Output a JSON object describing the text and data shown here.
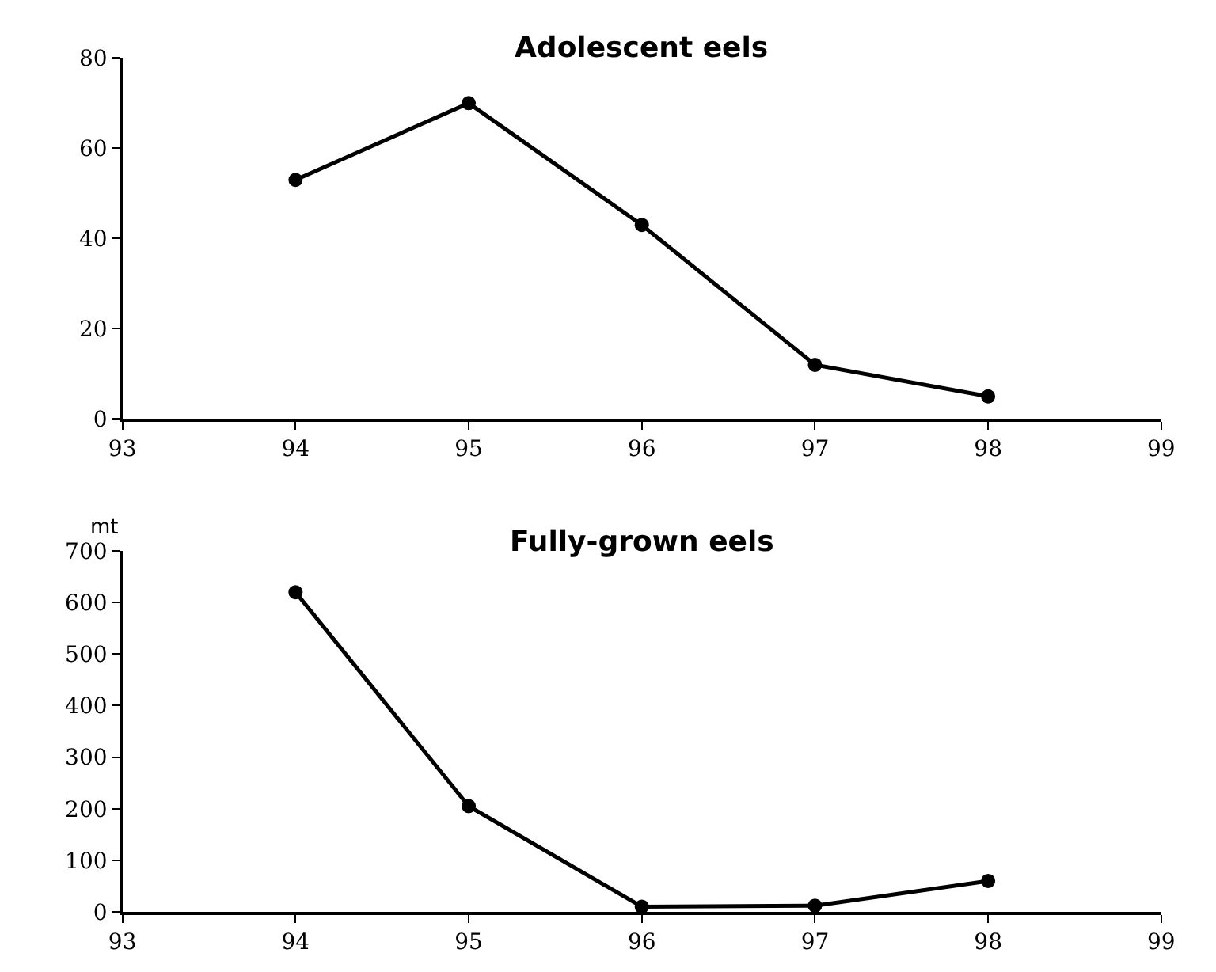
{
  "chart_data": [
    {
      "type": "line",
      "title": "Adolescent eels",
      "x": [
        94,
        95,
        96,
        97,
        98
      ],
      "series": [
        {
          "color": "#000000",
          "values": [
            53,
            70,
            43,
            12,
            5
          ]
        }
      ],
      "xlim": [
        93,
        99
      ],
      "xticks": [
        93,
        94,
        95,
        96,
        97,
        98,
        99
      ],
      "ylim": [
        0,
        80
      ],
      "yticks": [
        0,
        20,
        40,
        60,
        80
      ],
      "marker": "circle",
      "line_style": "solid"
    },
    {
      "type": "line",
      "title": "Fully-grown eels",
      "ylabel": "mt",
      "x": [
        94,
        95,
        96,
        97,
        98
      ],
      "series": [
        {
          "color": "#000000",
          "values": [
            620,
            205,
            10,
            12,
            60
          ]
        }
      ],
      "xlim": [
        93,
        99
      ],
      "xticks": [
        93,
        94,
        95,
        96,
        97,
        98,
        99
      ],
      "ylim": [
        0,
        700
      ],
      "yticks": [
        0,
        100,
        200,
        300,
        400,
        500,
        600,
        700
      ],
      "marker": "circle",
      "line_style": "solid"
    }
  ]
}
